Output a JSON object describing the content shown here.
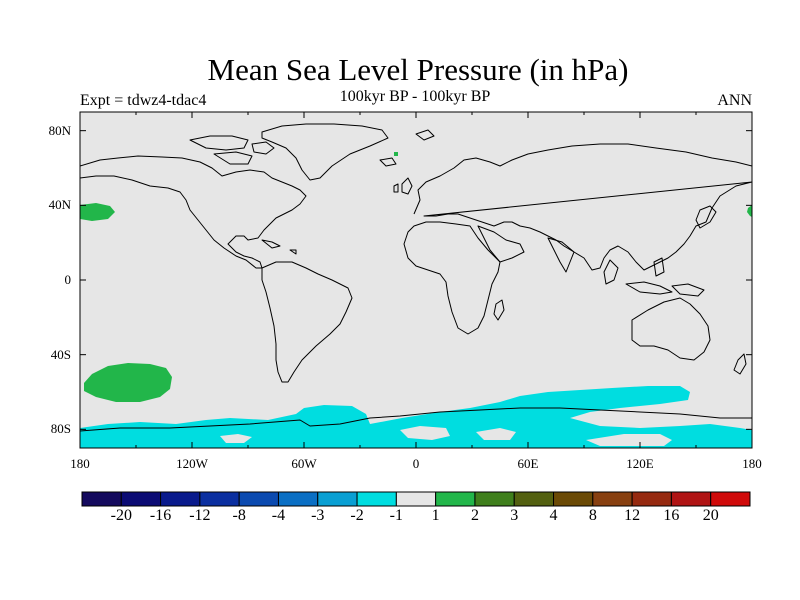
{
  "title": "Mean Sea Level Pressure (in hPa)",
  "subtitle": "100kyr BP - 100kyr BP",
  "experiment": "Expt = tdwz4-tdac4",
  "season": "ANN",
  "map": {
    "projection": "cylindrical-equidistant",
    "lon_range": [
      -180,
      180
    ],
    "lat_range": [
      -90,
      90
    ],
    "background_color": "#e6e6e6",
    "x_ticks": [
      "180",
      "120W",
      "60W",
      "0",
      "60E",
      "120E",
      "180"
    ],
    "y_ticks": [
      "80N",
      "40N",
      "0",
      "40S",
      "80S"
    ]
  },
  "colorbar": {
    "colors": [
      "#140a5e",
      "#0b0b74",
      "#091a8c",
      "#0b2fa0",
      "#0b4ab0",
      "#0a6fc4",
      "#099fd3",
      "#00dde0",
      "#e6e6e6",
      "#22b64a",
      "#3f7f1c",
      "#536010",
      "#6b4a06",
      "#884010",
      "#962a10",
      "#b01414",
      "#d00a0a"
    ],
    "labels": [
      "-20",
      "-16",
      "-12",
      "-8",
      "-4",
      "-3",
      "-2",
      "-1",
      "1",
      "2",
      "3",
      "4",
      "8",
      "12",
      "16",
      "20"
    ]
  },
  "anomaly_regions": [
    {
      "color": "#22b64a",
      "label": "positive anomaly, North Pacific",
      "approx_center": [
        -175,
        38
      ]
    },
    {
      "color": "#22b64a",
      "label": "positive anomaly, South Pacific",
      "approx_center": [
        -145,
        -53
      ]
    },
    {
      "color": "#22b64a",
      "label": "positive anomaly, far NW Pacific",
      "approx_center": [
        179,
        38
      ]
    },
    {
      "color": "#00dde0",
      "label": "negative anomaly, Southern Ocean",
      "approx_center": [
        30,
        -75
      ]
    }
  ]
}
